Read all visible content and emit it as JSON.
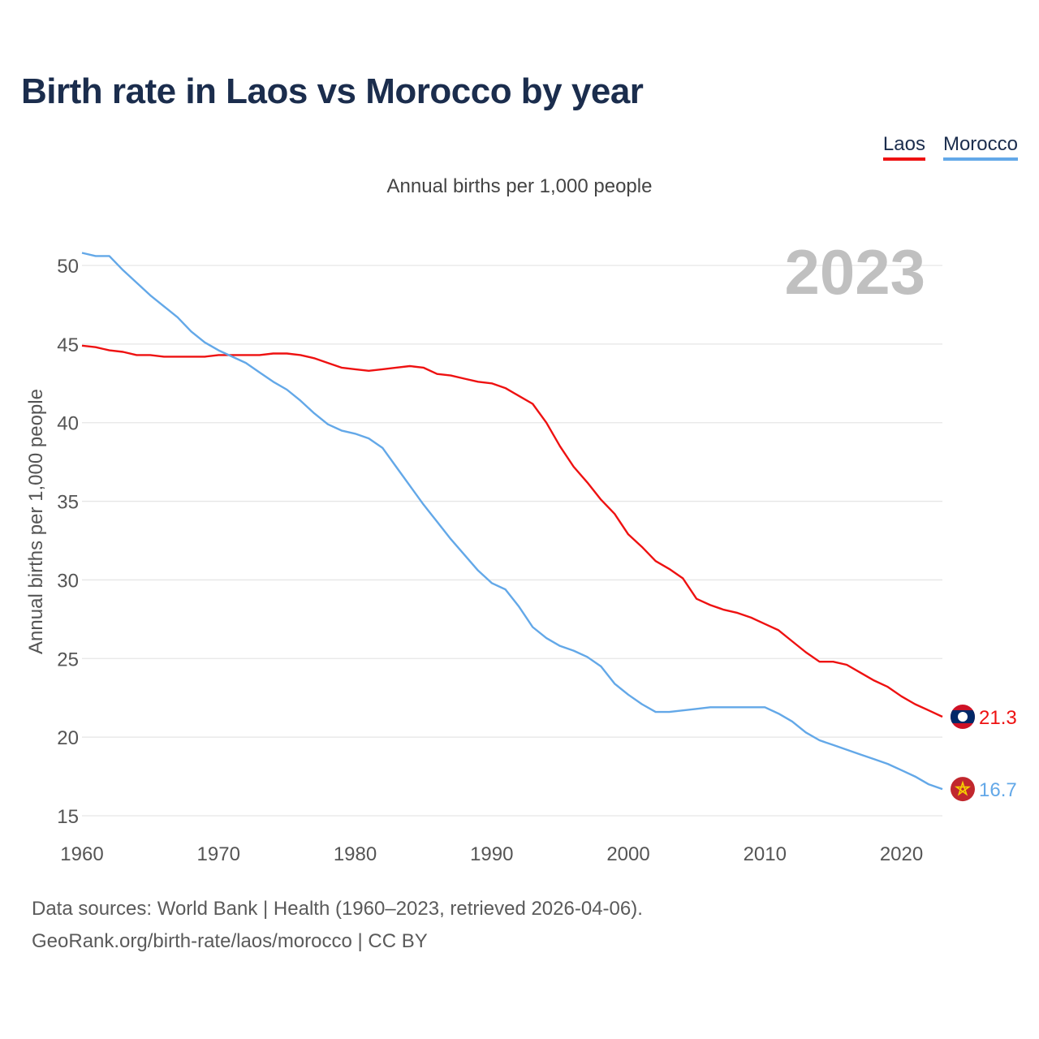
{
  "title": "Birth rate in Laos vs Morocco by year",
  "subtitle": "Annual births per 1,000 people",
  "legend": [
    {
      "label": "Laos",
      "color": "#ee1111"
    },
    {
      "label": "Morocco",
      "color": "#63a8e8"
    }
  ],
  "year_overlay": "2023",
  "source_line1": "Data sources: World Bank | Health (1960–2023, retrieved 2026-04-06).",
  "source_line2": "GeoRank.org/birth-rate/laos/morocco | CC BY",
  "chart_data": {
    "type": "line",
    "title": "Birth rate in Laos vs Morocco by year",
    "ylabel": "Annual births per 1,000 people",
    "xlabel": "",
    "xlim": [
      1960,
      2023
    ],
    "ylim": [
      15,
      51
    ],
    "x_ticks": [
      1960,
      1970,
      1980,
      1990,
      2000,
      2010,
      2020
    ],
    "y_ticks": [
      15,
      20,
      25,
      30,
      35,
      40,
      45,
      50
    ],
    "grid": true,
    "series": [
      {
        "name": "Laos",
        "color": "#ee1111",
        "end_label": "21.3",
        "flag": "laos-flag",
        "x": [
          1960,
          1961,
          1962,
          1963,
          1964,
          1965,
          1966,
          1967,
          1968,
          1969,
          1970,
          1971,
          1972,
          1973,
          1974,
          1975,
          1976,
          1977,
          1978,
          1979,
          1980,
          1981,
          1982,
          1983,
          1984,
          1985,
          1986,
          1987,
          1988,
          1989,
          1990,
          1991,
          1992,
          1993,
          1994,
          1995,
          1996,
          1997,
          1998,
          1999,
          2000,
          2001,
          2002,
          2003,
          2004,
          2005,
          2006,
          2007,
          2008,
          2009,
          2010,
          2011,
          2012,
          2013,
          2014,
          2015,
          2016,
          2017,
          2018,
          2019,
          2020,
          2021,
          2022,
          2023
        ],
        "values": [
          44.9,
          44.8,
          44.6,
          44.5,
          44.3,
          44.3,
          44.2,
          44.2,
          44.2,
          44.2,
          44.3,
          44.3,
          44.3,
          44.3,
          44.4,
          44.4,
          44.3,
          44.1,
          43.8,
          43.5,
          43.4,
          43.3,
          43.4,
          43.5,
          43.6,
          43.5,
          43.1,
          43.0,
          42.8,
          42.6,
          42.5,
          42.2,
          41.7,
          41.2,
          40.0,
          38.5,
          37.2,
          36.2,
          35.1,
          34.2,
          32.9,
          32.1,
          31.2,
          30.7,
          30.1,
          28.8,
          28.4,
          28.1,
          27.9,
          27.6,
          27.2,
          26.8,
          26.1,
          25.4,
          24.8,
          24.8,
          24.6,
          24.1,
          23.6,
          23.2,
          22.6,
          22.1,
          21.7,
          21.3
        ]
      },
      {
        "name": "Morocco",
        "color": "#63a8e8",
        "end_label": "16.7",
        "flag": "morocco-flag",
        "x": [
          1960,
          1961,
          1962,
          1963,
          1964,
          1965,
          1966,
          1967,
          1968,
          1969,
          1970,
          1971,
          1972,
          1973,
          1974,
          1975,
          1976,
          1977,
          1978,
          1979,
          1980,
          1981,
          1982,
          1983,
          1984,
          1985,
          1986,
          1987,
          1988,
          1989,
          1990,
          1991,
          1992,
          1993,
          1994,
          1995,
          1996,
          1997,
          1998,
          1999,
          2000,
          2001,
          2002,
          2003,
          2004,
          2005,
          2006,
          2007,
          2008,
          2009,
          2010,
          2011,
          2012,
          2013,
          2014,
          2015,
          2016,
          2017,
          2018,
          2019,
          2020,
          2021,
          2022,
          2023
        ],
        "values": [
          50.8,
          50.6,
          50.6,
          49.7,
          48.9,
          48.1,
          47.4,
          46.7,
          45.8,
          45.1,
          44.6,
          44.2,
          43.8,
          43.2,
          42.6,
          42.1,
          41.4,
          40.6,
          39.9,
          39.5,
          39.3,
          39.0,
          38.4,
          37.2,
          36.0,
          34.8,
          33.7,
          32.6,
          31.6,
          30.6,
          29.8,
          29.4,
          28.3,
          27.0,
          26.3,
          25.8,
          25.5,
          25.1,
          24.5,
          23.4,
          22.7,
          22.1,
          21.6,
          21.6,
          21.7,
          21.8,
          21.9,
          21.9,
          21.9,
          21.9,
          21.9,
          21.5,
          21.0,
          20.3,
          19.8,
          19.5,
          19.2,
          18.9,
          18.6,
          18.3,
          17.9,
          17.5,
          17.0,
          16.7
        ]
      }
    ]
  }
}
